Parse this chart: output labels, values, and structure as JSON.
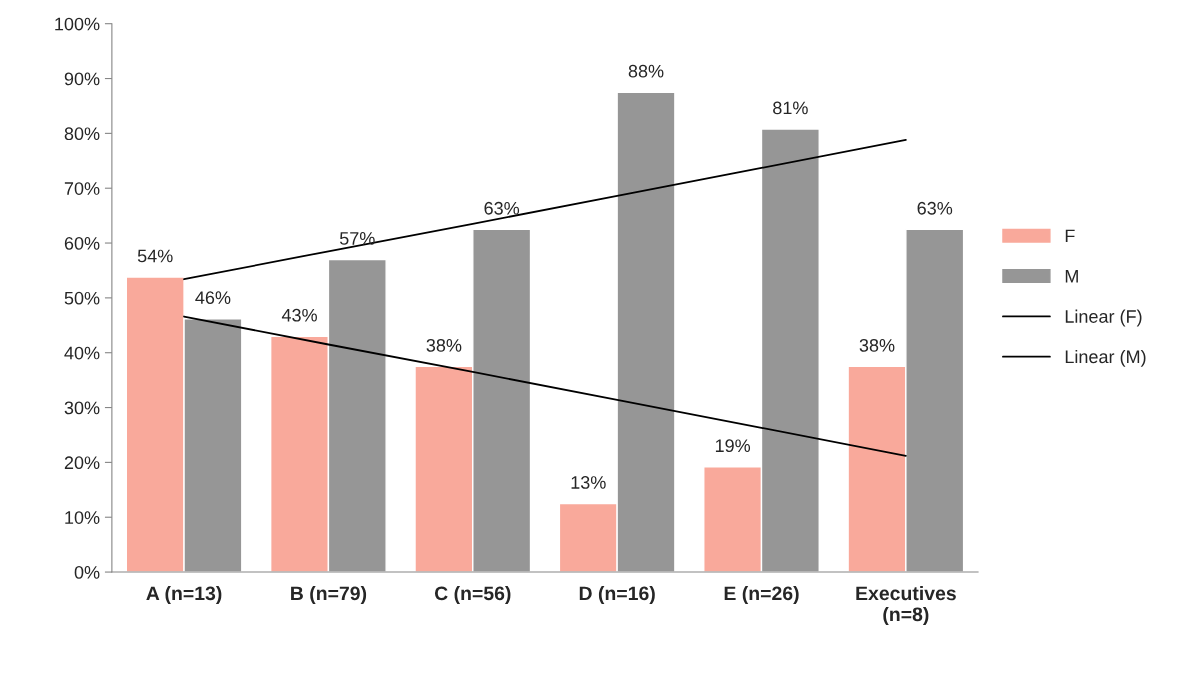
{
  "chart_data": {
    "type": "bar",
    "categories": [
      "A (n=13)",
      "B (n=79)",
      "C (n=56)",
      "D (n=16)",
      "E (n=26)",
      "Executives\n(n=8)"
    ],
    "series": [
      {
        "name": "F",
        "color": "#f9a99b",
        "values": [
          53.8,
          43.0,
          37.5,
          12.5,
          19.2,
          37.5
        ],
        "value_labels": [
          "54%",
          "43%",
          "38%",
          "13%",
          "19%",
          "38%"
        ]
      },
      {
        "name": "M",
        "color": "#969696",
        "values": [
          46.2,
          57.0,
          62.5,
          87.5,
          80.8,
          62.5
        ],
        "value_labels": [
          "46%",
          "57%",
          "63%",
          "88%",
          "81%",
          "63%"
        ]
      },
      {
        "name": "Linear (F)",
        "type": "line",
        "color": "#000000",
        "values": [
          46.6,
          41.5,
          36.5,
          31.4,
          26.3,
          21.2
        ]
      },
      {
        "name": "Linear (M)",
        "type": "line",
        "color": "#000000",
        "values": [
          53.4,
          58.5,
          63.5,
          68.6,
          73.7,
          78.8
        ]
      }
    ],
    "ylim": [
      0,
      100
    ],
    "yticks": [
      {
        "value": 0,
        "label": "0%"
      },
      {
        "value": 10,
        "label": "10%"
      },
      {
        "value": 20,
        "label": "20%"
      },
      {
        "value": 30,
        "label": "30%"
      },
      {
        "value": 40,
        "label": "40%"
      },
      {
        "value": 50,
        "label": "50%"
      },
      {
        "value": 60,
        "label": "60%"
      },
      {
        "value": 70,
        "label": "70%"
      },
      {
        "value": 80,
        "label": "80%"
      },
      {
        "value": 90,
        "label": "90%"
      },
      {
        "value": 100,
        "label": "100%"
      }
    ],
    "grid": false,
    "legend": "right"
  }
}
